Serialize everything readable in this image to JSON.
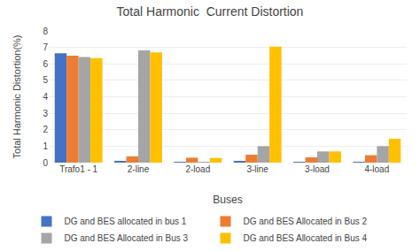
{
  "chart_data": {
    "type": "bar",
    "title": "Total Harmonic  Current Distortion",
    "xlabel": "Buses",
    "ylabel": "Total Harmonic Distortion(%)",
    "categories": [
      "Trafo1 - 1",
      "2-line",
      "2-load",
      "3-line",
      "3-load",
      "4-load"
    ],
    "series": [
      {
        "name": "DG and BES allocated in bus 1",
        "color": "#4472c4",
        "values": [
          6.65,
          0.1,
          0.05,
          0.1,
          0.05,
          0.05
        ]
      },
      {
        "name": "DG and BES Allocated in Bus 2",
        "color": "#ed7d31",
        "values": [
          6.5,
          0.38,
          0.3,
          0.48,
          0.32,
          0.45
        ]
      },
      {
        "name": "DG and BES Allocated in Bus 3",
        "color": "#a5a5a5",
        "values": [
          6.42,
          6.82,
          0.05,
          1.0,
          0.68,
          1.0
        ]
      },
      {
        "name": "DG and BES Allocated in Bus 4",
        "color": "#ffc000",
        "values": [
          6.35,
          6.7,
          0.28,
          7.05,
          0.68,
          1.45
        ]
      }
    ],
    "ylim": [
      0,
      8
    ],
    "yticks": [
      0,
      1,
      2,
      3,
      4,
      5,
      6,
      7,
      8
    ],
    "grid": true,
    "legend": "bottom"
  }
}
